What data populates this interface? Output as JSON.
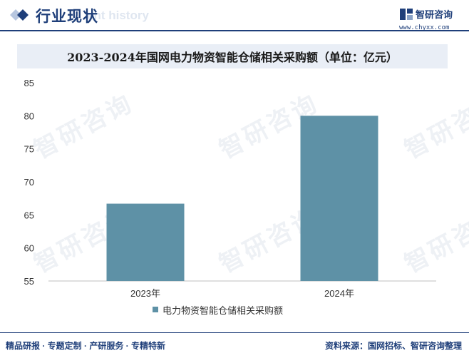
{
  "header": {
    "title": "行业现状",
    "subtitle": "ent history"
  },
  "logo": {
    "name": "智研咨询",
    "url": "www.chyxx.com"
  },
  "watermark_text": "智研咨询",
  "footer": {
    "left": "精品研报 · 专题定制 · 产研服务 · 专精特新",
    "right": "资料来源：国网招标、智研咨询整理"
  },
  "colors": {
    "brand": "#1f3f7a",
    "bar": "#5e91a6"
  },
  "chart_data": {
    "type": "bar",
    "title": "2023-2024年国网电力物资智能仓储相关采购额（单位：亿元）",
    "categories": [
      "2023年",
      "2024年"
    ],
    "series": [
      {
        "name": "电力物资智能仓储相关采购额",
        "values": [
          66.7,
          80
        ]
      }
    ],
    "ylim": [
      55,
      85
    ],
    "yticks": [
      55,
      60,
      65,
      70,
      75,
      80,
      85
    ],
    "xlabel": "",
    "ylabel": "",
    "grid": false,
    "legend": "bottom"
  }
}
